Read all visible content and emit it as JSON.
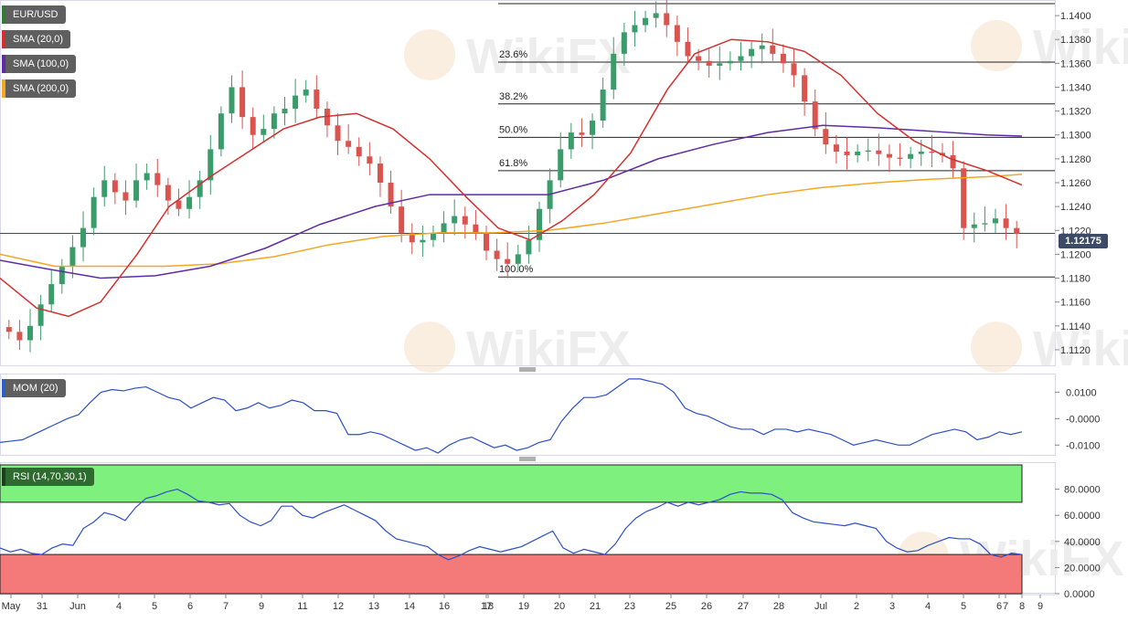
{
  "symbol_label": "EUR/USD",
  "indicators": [
    {
      "label": "SMA (20,0)",
      "color": "#d32f2f"
    },
    {
      "label": "SMA (100,0)",
      "color": "#5e2ca5"
    },
    {
      "label": "SMA (200,0)",
      "color": "#f5a623"
    }
  ],
  "current_price": "1.12175",
  "watermark": "WikiFX",
  "chart_data": {
    "type": "candlestick",
    "main": {
      "ylim": [
        1.111,
        1.141
      ],
      "yticks": [
        "1.1400",
        "1.1380",
        "1.1360",
        "1.1340",
        "1.1320",
        "1.1300",
        "1.1280",
        "1.1260",
        "1.1240",
        "1.1220",
        "1.1200",
        "1.1180",
        "1.1160",
        "1.1140",
        "1.1120"
      ],
      "fibonacci": [
        {
          "label": "",
          "price": 1.141
        },
        {
          "label": "23.6%",
          "price": 1.1361
        },
        {
          "label": "38.2%",
          "price": 1.1326
        },
        {
          "label": "50.0%",
          "price": 1.1298
        },
        {
          "label": "61.8%",
          "price": 1.127
        },
        {
          "label": "100.0%",
          "price": 1.1181
        }
      ],
      "price_line": 1.12175,
      "close_path": [
        1.1135,
        1.1128,
        1.114,
        1.1158,
        1.1175,
        1.119,
        1.1206,
        1.1222,
        1.1248,
        1.1262,
        1.1252,
        1.1245,
        1.1262,
        1.1268,
        1.1258,
        1.1245,
        1.1238,
        1.1248,
        1.1262,
        1.1288,
        1.1318,
        1.134,
        1.1315,
        1.13,
        1.1305,
        1.1318,
        1.1322,
        1.1333,
        1.1338,
        1.1322,
        1.1308,
        1.1295,
        1.129,
        1.1282,
        1.1276,
        1.126,
        1.124,
        1.1218,
        1.121,
        1.1212,
        1.1218,
        1.1226,
        1.1232,
        1.1225,
        1.1218,
        1.1203,
        1.1196,
        1.1192,
        1.12,
        1.1212,
        1.1238,
        1.1262,
        1.1288,
        1.1302,
        1.13,
        1.1312,
        1.1338,
        1.1368,
        1.1386,
        1.1392,
        1.1398,
        1.1402,
        1.1392,
        1.1378,
        1.1366,
        1.1362,
        1.1358,
        1.136,
        1.1362,
        1.1366,
        1.1372,
        1.1375,
        1.1368,
        1.136,
        1.135,
        1.1328,
        1.1305,
        1.1292,
        1.1286,
        1.1283,
        1.1286,
        1.1287,
        1.1284,
        1.1281,
        1.128,
        1.1284,
        1.1286,
        1.1285,
        1.1283,
        1.1272,
        1.1222,
        1.1225,
        1.1226,
        1.123,
        1.1222,
        1.1217
      ],
      "sma20": [
        [
          0,
          1.118
        ],
        [
          40,
          1.1155
        ],
        [
          75,
          1.1148
        ],
        [
          110,
          1.116
        ],
        [
          150,
          1.12
        ],
        [
          185,
          1.124
        ],
        [
          230,
          1.1265
        ],
        [
          270,
          1.1285
        ],
        [
          310,
          1.1305
        ],
        [
          350,
          1.1315
        ],
        [
          390,
          1.1318
        ],
        [
          430,
          1.1305
        ],
        [
          470,
          1.128
        ],
        [
          510,
          1.1248
        ],
        [
          545,
          1.1222
        ],
        [
          580,
          1.1212
        ],
        [
          615,
          1.1228
        ],
        [
          650,
          1.125
        ],
        [
          690,
          1.1285
        ],
        [
          730,
          1.1338
        ],
        [
          760,
          1.1368
        ],
        [
          800,
          1.138
        ],
        [
          840,
          1.1378
        ],
        [
          880,
          1.137
        ],
        [
          920,
          1.135
        ],
        [
          960,
          1.1318
        ],
        [
          1000,
          1.1295
        ],
        [
          1040,
          1.128
        ],
        [
          1080,
          1.127
        ],
        [
          1118,
          1.1258
        ]
      ],
      "sma100": [
        [
          0,
          1.1195
        ],
        [
          50,
          1.1188
        ],
        [
          110,
          1.118
        ],
        [
          170,
          1.1182
        ],
        [
          230,
          1.119
        ],
        [
          290,
          1.1205
        ],
        [
          350,
          1.1225
        ],
        [
          410,
          1.124
        ],
        [
          470,
          1.125
        ],
        [
          540,
          1.125
        ],
        [
          600,
          1.125
        ],
        [
          660,
          1.1262
        ],
        [
          720,
          1.128
        ],
        [
          780,
          1.1292
        ],
        [
          840,
          1.1302
        ],
        [
          900,
          1.1308
        ],
        [
          960,
          1.1306
        ],
        [
          1020,
          1.1303
        ],
        [
          1080,
          1.13
        ],
        [
          1118,
          1.1299
        ]
      ],
      "sma200": [
        [
          0,
          1.12
        ],
        [
          60,
          1.119
        ],
        [
          120,
          1.119
        ],
        [
          180,
          1.119
        ],
        [
          240,
          1.1192
        ],
        [
          300,
          1.1198
        ],
        [
          360,
          1.1208
        ],
        [
          420,
          1.1215
        ],
        [
          480,
          1.1218
        ],
        [
          540,
          1.1218
        ],
        [
          600,
          1.122
        ],
        [
          660,
          1.1226
        ],
        [
          720,
          1.1234
        ],
        [
          780,
          1.1242
        ],
        [
          840,
          1.125
        ],
        [
          900,
          1.1256
        ],
        [
          960,
          1.126
        ],
        [
          1020,
          1.1263
        ],
        [
          1080,
          1.1265
        ],
        [
          1118,
          1.1267
        ]
      ]
    },
    "mom": {
      "label": "MOM (20)",
      "ylim": [
        -0.013,
        0.016
      ],
      "yticks": [
        "0.0100",
        "-0.0000",
        "-0.0100"
      ],
      "values": [
        -0.009,
        -0.0085,
        -0.008,
        -0.006,
        -0.004,
        -0.002,
        0.0,
        0.0015,
        0.006,
        0.01,
        0.011,
        0.0105,
        0.0115,
        0.012,
        0.01,
        0.008,
        0.007,
        0.004,
        0.006,
        0.008,
        0.007,
        0.003,
        0.004,
        0.006,
        0.004,
        0.005,
        0.007,
        0.006,
        0.003,
        0.003,
        0.002,
        -0.006,
        -0.006,
        -0.005,
        -0.006,
        -0.008,
        -0.01,
        -0.012,
        -0.011,
        -0.013,
        -0.01,
        -0.008,
        -0.007,
        -0.009,
        -0.011,
        -0.01,
        -0.012,
        -0.011,
        -0.009,
        -0.008,
        -0.001,
        0.004,
        0.008,
        0.008,
        0.009,
        0.012,
        0.015,
        0.015,
        0.014,
        0.013,
        0.01,
        0.004,
        0.002,
        0.001,
        -0.001,
        -0.003,
        -0.004,
        -0.004,
        -0.006,
        -0.004,
        -0.004,
        -0.005,
        -0.004,
        -0.005,
        -0.006,
        -0.008,
        -0.01,
        -0.009,
        -0.008,
        -0.009,
        -0.01,
        -0.01,
        -0.008,
        -0.006,
        -0.005,
        -0.004,
        -0.005,
        -0.008,
        -0.007,
        -0.005,
        -0.006,
        -0.005
      ]
    },
    "rsi": {
      "label": "RSI (14,70,30,1)",
      "ylim": [
        0,
        100
      ],
      "yticks": [
        "80.0000",
        "60.0000",
        "40.0000",
        "20.0000",
        "0.0000"
      ],
      "overbought": 70,
      "oversold": 30,
      "values": [
        35,
        32,
        34,
        31,
        30,
        35,
        38,
        37,
        50,
        55,
        62,
        60,
        56,
        66,
        73,
        75,
        78,
        80,
        76,
        71,
        70,
        68,
        69,
        60,
        55,
        52,
        56,
        67,
        67,
        60,
        58,
        62,
        65,
        68,
        64,
        60,
        56,
        48,
        42,
        40,
        38,
        36,
        30,
        26,
        29,
        33,
        36,
        34,
        32,
        34,
        36,
        40,
        44,
        48,
        35,
        31,
        34,
        32,
        30,
        38,
        50,
        58,
        63,
        66,
        70,
        67,
        70,
        68,
        70,
        72,
        76,
        78,
        77,
        77,
        76,
        72,
        62,
        58,
        55,
        54,
        53,
        52,
        54,
        52,
        50,
        40,
        35,
        32,
        33,
        37,
        40,
        43,
        42,
        42,
        38,
        30,
        28,
        31,
        30
      ]
    },
    "x_axis_labels": [
      {
        "label": "May",
        "pos": 12
      },
      {
        "label": "31",
        "pos": 46
      },
      {
        "label": "Jun",
        "pos": 85
      },
      {
        "label": "4",
        "pos": 130
      },
      {
        "label": "5",
        "pos": 169
      },
      {
        "label": "6",
        "pos": 208
      },
      {
        "label": "7",
        "pos": 247
      },
      {
        "label": "9",
        "pos": 286
      },
      {
        "label": "11",
        "pos": 331
      },
      {
        "label": "12",
        "pos": 370
      },
      {
        "label": "13",
        "pos": 409
      },
      {
        "label": "14",
        "pos": 448
      },
      {
        "label": "16",
        "pos": 486
      },
      {
        "label": "17",
        "pos": 532
      },
      {
        "label": "18",
        "pos": 534
      },
      {
        "label": "19",
        "pos": 573
      },
      {
        "label": "20",
        "pos": 612
      },
      {
        "label": "21",
        "pos": 651
      },
      {
        "label": "23",
        "pos": 689
      },
      {
        "label": "25",
        "pos": 734
      },
      {
        "label": "26",
        "pos": 773
      },
      {
        "label": "27",
        "pos": 813
      },
      {
        "label": "28",
        "pos": 852
      },
      {
        "label": "Jul",
        "pos": 898
      },
      {
        "label": "2",
        "pos": 937
      },
      {
        "label": "3",
        "pos": 976
      },
      {
        "label": "4",
        "pos": 1015
      },
      {
        "label": "5",
        "pos": 1054
      },
      {
        "label": "6",
        "pos": 1093
      },
      {
        "label": "7",
        "pos": 1100
      },
      {
        "label": "8",
        "pos": 1118
      },
      {
        "label": "9",
        "pos": 1138
      }
    ]
  }
}
